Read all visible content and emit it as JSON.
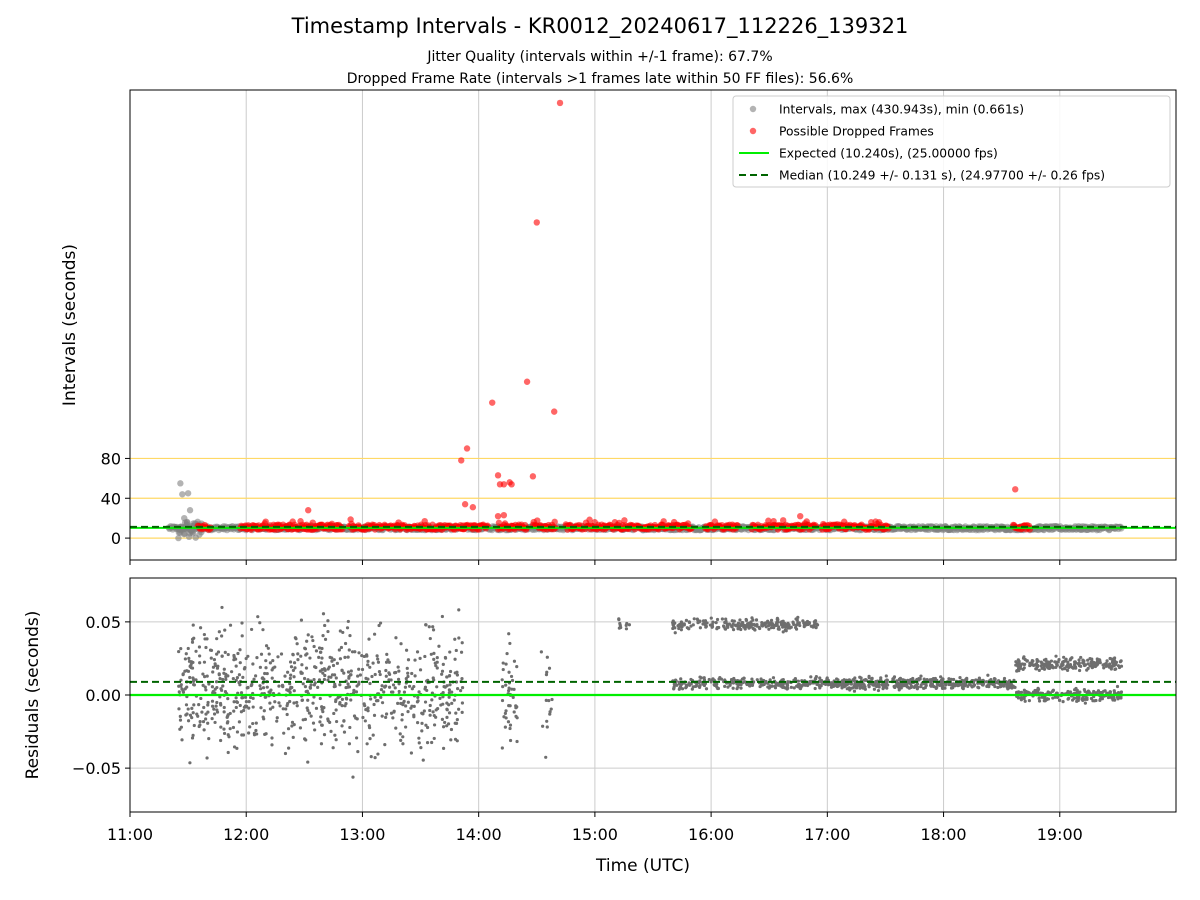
{
  "figure": {
    "title": "Timestamp Intervals - KR0012_20240617_112226_139321",
    "subtitle_1": "Jitter Quality (intervals within +/-1 frame): 67.7%",
    "subtitle_2": "Dropped Frame Rate (intervals >1 frames late within 50 FF files): 56.6%"
  },
  "colors": {
    "intervals": "#808080",
    "dropped": "#ff0000",
    "expected": "#00ee00",
    "median": "#006400",
    "threshold_lines": "#ffd966",
    "grid": "#cccccc"
  },
  "chart_data": [
    {
      "type": "scatter",
      "panel": "top",
      "xlabel": "",
      "ylabel": "Intervals (seconds)",
      "y_ticks": [
        0,
        40,
        80
      ],
      "ylim": [
        -22,
        450
      ],
      "x_axis": "time",
      "xlim": [
        "11:00",
        "20:00"
      ],
      "grid": "vertical",
      "horizontal_reference_lines": [
        0,
        40,
        80
      ],
      "legend_position": "top-right",
      "legend": [
        {
          "label": "Intervals, max (430.943s), min (0.661s)",
          "marker": "gray-dot"
        },
        {
          "label": "Possible Dropped Frames",
          "marker": "red-dot"
        },
        {
          "label": "Expected (10.240s), (25.00000 fps)",
          "marker": "green-solid-line"
        },
        {
          "label": "Median (10.249 +/- 0.131 s), (24.97700 +/- 0.26 fps)",
          "marker": "darkgreen-dashed-line"
        }
      ],
      "expected_value": 10.24,
      "median_value": 10.249,
      "notable_points": [
        {
          "series": "Intervals",
          "x": "11:25",
          "y": 0
        },
        {
          "series": "Intervals",
          "x": "11:26",
          "y": 55
        },
        {
          "series": "Intervals",
          "x": "11:27",
          "y": 44
        },
        {
          "series": "Intervals",
          "x": "11:30",
          "y": 45
        },
        {
          "series": "Intervals",
          "x": "11:31",
          "y": 28
        },
        {
          "series": "Intervals",
          "x": "11:28",
          "y": 20
        },
        {
          "series": "Possible Dropped Frames",
          "x": "12:32",
          "y": 28
        },
        {
          "series": "Possible Dropped Frames",
          "x": "13:51",
          "y": 78
        },
        {
          "series": "Possible Dropped Frames",
          "x": "13:54",
          "y": 90
        },
        {
          "series": "Possible Dropped Frames",
          "x": "13:53",
          "y": 34
        },
        {
          "series": "Possible Dropped Frames",
          "x": "13:57",
          "y": 31
        },
        {
          "series": "Possible Dropped Frames",
          "x": "14:07",
          "y": 136
        },
        {
          "series": "Possible Dropped Frames",
          "x": "14:10",
          "y": 63
        },
        {
          "series": "Possible Dropped Frames",
          "x": "14:11",
          "y": 54
        },
        {
          "series": "Possible Dropped Frames",
          "x": "14:13",
          "y": 54
        },
        {
          "series": "Possible Dropped Frames",
          "x": "14:16",
          "y": 56
        },
        {
          "series": "Possible Dropped Frames",
          "x": "14:17",
          "y": 54
        },
        {
          "series": "Possible Dropped Frames",
          "x": "14:10",
          "y": 22
        },
        {
          "series": "Possible Dropped Frames",
          "x": "14:13",
          "y": 23
        },
        {
          "series": "Possible Dropped Frames",
          "x": "14:25",
          "y": 157
        },
        {
          "series": "Possible Dropped Frames",
          "x": "14:28",
          "y": 62
        },
        {
          "series": "Possible Dropped Frames",
          "x": "14:30",
          "y": 317
        },
        {
          "series": "Possible Dropped Frames",
          "x": "14:39",
          "y": 127
        },
        {
          "series": "Possible Dropped Frames",
          "x": "14:42",
          "y": 437
        },
        {
          "series": "Possible Dropped Frames",
          "x": "16:46",
          "y": 22
        },
        {
          "series": "Possible Dropped Frames",
          "x": "18:37",
          "y": 49
        }
      ],
      "dropped_frame_segments": [
        [
          "11:35",
          "11:42"
        ],
        [
          "11:57",
          "12:50"
        ],
        [
          "12:53",
          "13:52"
        ],
        [
          "13:52",
          "14:05"
        ],
        [
          "14:10",
          "14:25"
        ],
        [
          "14:28",
          "14:40"
        ],
        [
          "14:45",
          "14:54"
        ],
        [
          "14:55",
          "15:50"
        ],
        [
          "15:57",
          "16:14"
        ],
        [
          "16:21",
          "16:54"
        ],
        [
          "16:57",
          "17:32"
        ],
        [
          "18:36",
          "18:45"
        ]
      ],
      "interval_band": {
        "from": "11:20",
        "to": "19:32",
        "y_min": 8,
        "y_max": 12
      }
    },
    {
      "type": "scatter",
      "panel": "bottom",
      "xlabel": "Time (UTC)",
      "ylabel": "Residuals (seconds)",
      "y_ticks": [
        -0.05,
        0.0,
        0.05
      ],
      "y_tick_labels": [
        "−0.05",
        "0.00",
        "0.05"
      ],
      "ylim": [
        -0.08,
        0.08
      ],
      "x_ticks": [
        "11:00",
        "12:00",
        "13:00",
        "14:00",
        "15:00",
        "16:00",
        "17:00",
        "18:00",
        "19:00"
      ],
      "xlim": [
        "11:00",
        "20:00"
      ],
      "grid": "both",
      "expected_residual": 0.0,
      "median_residual": 0.009,
      "clusters": [
        {
          "x_from": "11:25",
          "x_to": "13:52",
          "y_center": 0.005,
          "y_spread": 0.04,
          "count": 800
        },
        {
          "x_from": "14:12",
          "x_to": "14:20",
          "y_center": 0.0,
          "y_spread": 0.035,
          "count": 45
        },
        {
          "x_from": "14:32",
          "x_to": "14:38",
          "y_center": 0.005,
          "y_spread": 0.04,
          "count": 15
        },
        {
          "x_from": "15:10",
          "x_to": "15:18",
          "y_center": 0.048,
          "y_spread": 0.004,
          "count": 10
        },
        {
          "x_from": "15:40",
          "x_to": "16:55",
          "y_center": 0.048,
          "y_spread": 0.004,
          "count": 220
        },
        {
          "x_from": "15:40",
          "x_to": "16:55",
          "y_center": 0.008,
          "y_spread": 0.004,
          "count": 220
        },
        {
          "x_from": "16:55",
          "x_to": "18:37",
          "y_center": 0.008,
          "y_spread": 0.004,
          "count": 450
        },
        {
          "x_from": "18:37",
          "x_to": "19:32",
          "y_center": 0.021,
          "y_spread": 0.004,
          "count": 210
        },
        {
          "x_from": "18:37",
          "x_to": "19:32",
          "y_center": 0.0,
          "y_spread": 0.004,
          "count": 210
        }
      ]
    }
  ]
}
